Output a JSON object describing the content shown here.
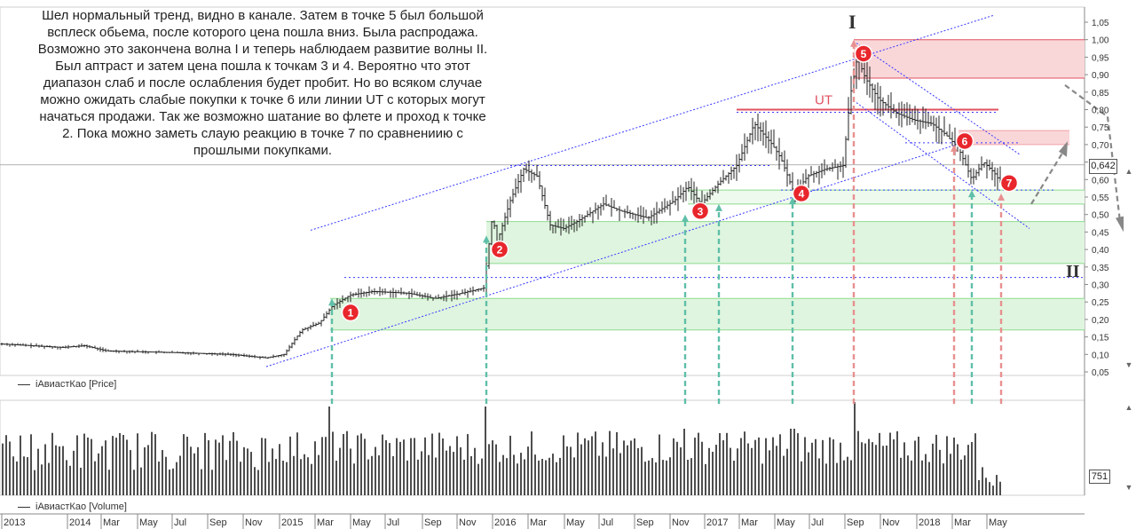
{
  "annotation_text": "Шел нормальный тренд, видно в канале. Затем в точке 5 был большой\nвсплеск обьема, после которого цена пошла вниз. Была распродажа.\nВозможно это закончена волна I и теперь наблюдаем развитие волны II.\nБыл аптраст и затем цена пошла к точкам 3 и 4. Вероятно что этот\nдиапазон слаб и после ослабления будет пробит. Но во всяком случае\nможно ожидать слабые покупки к точке 6 или линии UT с которых могут\nначаться продажи. Так же возможно шатание во флете и проход к точке\n2. Пока можно заметь слаую реакцию в точке 7 по сравнениию с\nпрошлыми покупками.",
  "legend": {
    "price": "iАвиастКао [Price]",
    "volume": "iАвиастКао [Volume]"
  },
  "last_price": "0,642",
  "last_volume": "751",
  "colors": {
    "bars": "#222222",
    "channel": "#3a3aff",
    "green_zone": "#dff5df",
    "green_line": "#8fdc8f",
    "red_zone": "#f9d7d9",
    "red_line": "#e05060",
    "marker": "#e8262c",
    "arrow_green": "#5fbfa8",
    "arrow_red": "#e89090",
    "arrow_gray": "#888888"
  },
  "chart_data": [
    {
      "type": "ohlc",
      "series_name": "iАвиастКао [Price]",
      "ylim": [
        0.05,
        1.07
      ],
      "y_ticks": [
        "1,05",
        "1,00",
        "0,95",
        "0,90",
        "0,85",
        "0,80",
        "0,75",
        "0,70",
        "0,65",
        "0,60",
        "0,55",
        "0,50",
        "0,45",
        "0,40",
        "0,35",
        "0,30",
        "0,25",
        "0,20",
        "0,15",
        "0,10",
        "0,05"
      ],
      "x_ticks": [
        "2013",
        "2014",
        "Mar",
        "May",
        "Jul",
        "Sep",
        "Nov",
        "2015",
        "Mar",
        "May",
        "Jul",
        "Sep",
        "Nov",
        "2016",
        "Mar",
        "May",
        "Jul",
        "Sep",
        "Nov",
        "2017",
        "Mar",
        "May",
        "Jul",
        "Sep",
        "Nov",
        "2018",
        "Mar",
        "May"
      ],
      "close_path": [
        [
          0,
          0.13
        ],
        [
          70,
          0.12
        ],
        [
          95,
          0.125
        ],
        [
          120,
          0.11
        ],
        [
          200,
          0.105
        ],
        [
          260,
          0.1
        ],
        [
          300,
          0.09
        ],
        [
          320,
          0.1
        ],
        [
          340,
          0.17
        ],
        [
          360,
          0.19
        ],
        [
          375,
          0.24
        ],
        [
          395,
          0.27
        ],
        [
          420,
          0.28
        ],
        [
          460,
          0.275
        ],
        [
          490,
          0.26
        ],
        [
          520,
          0.275
        ],
        [
          545,
          0.29
        ],
        [
          555,
          0.5
        ],
        [
          560,
          0.42
        ],
        [
          575,
          0.54
        ],
        [
          590,
          0.63
        ],
        [
          605,
          0.61
        ],
        [
          620,
          0.47
        ],
        [
          635,
          0.46
        ],
        [
          650,
          0.48
        ],
        [
          680,
          0.53
        ],
        [
          700,
          0.51
        ],
        [
          730,
          0.49
        ],
        [
          760,
          0.54
        ],
        [
          775,
          0.58
        ],
        [
          790,
          0.53
        ],
        [
          810,
          0.59
        ],
        [
          830,
          0.64
        ],
        [
          850,
          0.76
        ],
        [
          870,
          0.7
        ],
        [
          880,
          0.66
        ],
        [
          895,
          0.56
        ],
        [
          910,
          0.61
        ],
        [
          930,
          0.63
        ],
        [
          950,
          0.64
        ],
        [
          958,
          0.84
        ],
        [
          966,
          0.95
        ],
        [
          975,
          0.89
        ],
        [
          990,
          0.83
        ],
        [
          1010,
          0.79
        ],
        [
          1030,
          0.77
        ],
        [
          1050,
          0.76
        ],
        [
          1065,
          0.73
        ],
        [
          1080,
          0.69
        ],
        [
          1095,
          0.6
        ],
        [
          1108,
          0.65
        ],
        [
          1120,
          0.62
        ],
        [
          1128,
          0.59
        ]
      ],
      "horizontal_levels": {
        "green_zone_1": [
          0.17,
          0.26
        ],
        "green_zone_2": [
          0.36,
          0.48
        ],
        "green_zone_3": [
          0.53,
          0.57
        ],
        "red_zone_top": [
          0.89,
          1.0
        ],
        "red_zone_mid": [
          0.7,
          0.74
        ],
        "ut_line": 0.8,
        "dotted_level_1": 0.32,
        "dotted_level_2": 0.64,
        "dotted_level_3": 0.57,
        "last_price": 0.642
      },
      "markers": [
        {
          "label": "1",
          "at": [
            395,
            0.22
          ]
        },
        {
          "label": "2",
          "at": [
            563,
            0.4
          ]
        },
        {
          "label": "3",
          "at": [
            789,
            0.51
          ]
        },
        {
          "label": "4",
          "at": [
            903,
            0.56
          ]
        },
        {
          "label": "5",
          "at": [
            973,
            0.96
          ]
        },
        {
          "label": "6",
          "at": [
            1087,
            0.71
          ]
        },
        {
          "label": "7",
          "at": [
            1137,
            0.59
          ]
        }
      ],
      "text_labels": {
        "ut": "UT",
        "wave_one": "I",
        "wave_two": "II"
      }
    },
    {
      "type": "bar",
      "series_name": "iАвиастКао [Volume]",
      "last_value": 751
    }
  ]
}
